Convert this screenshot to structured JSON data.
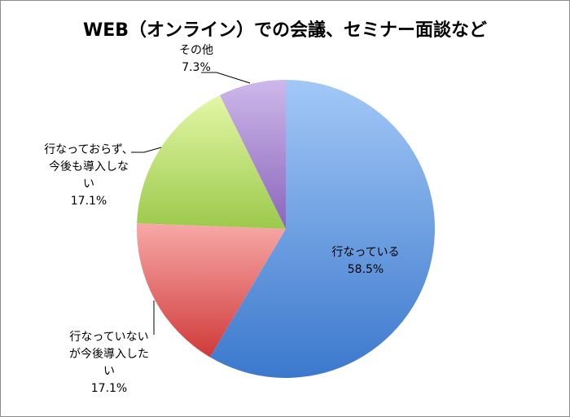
{
  "chart_data": {
    "type": "pie",
    "title": "WEB（オンライン）での会議、セミナー面談など",
    "start": "top",
    "direction": "clockwise",
    "slices": [
      {
        "label_lines": [
          "行なっている",
          "58.5%"
        ],
        "value": 58.5,
        "colors": [
          "#a3c8f7",
          "#3b78cc"
        ]
      },
      {
        "label_lines": [
          "行なっていない",
          "が今後導入した",
          "い",
          "17.1%"
        ],
        "value": 17.1,
        "colors": [
          "#f7a9a7",
          "#d03a3a"
        ]
      },
      {
        "label_lines": [
          "行なっておらず、",
          "今後も導入しな",
          "い",
          "17.1%"
        ],
        "value": 17.1,
        "colors": [
          "#e3f7a6",
          "#9cc94c"
        ]
      },
      {
        "label_lines": [
          "その他",
          "7.3%"
        ],
        "value": 7.3,
        "colors": [
          "#cdb8ea",
          "#8a66bb"
        ]
      }
    ],
    "legend": "none"
  }
}
